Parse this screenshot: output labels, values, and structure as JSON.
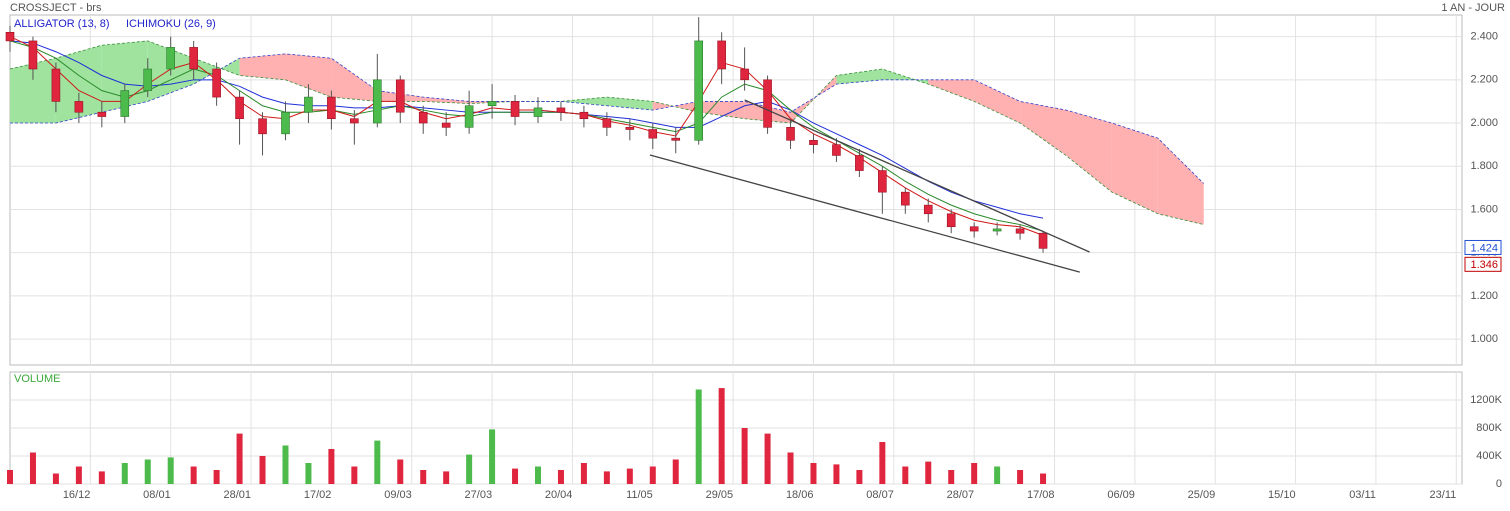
{
  "chart_data": {
    "type": "candlestick",
    "title": "CROSSJECT - brs",
    "period": "1 AN - JOUR",
    "x": [
      0,
      4,
      8,
      12,
      16,
      20,
      24,
      28,
      32,
      36,
      40,
      44,
      48,
      52,
      56,
      60,
      64,
      68,
      72,
      76,
      80,
      84,
      88,
      92,
      96,
      100,
      104,
      108,
      112,
      116,
      120,
      124,
      128,
      132,
      136,
      140,
      144,
      148,
      152,
      156,
      160,
      164,
      168,
      172,
      176,
      180
    ],
    "open": [
      2.42,
      2.38,
      2.25,
      2.1,
      2.05,
      2.03,
      2.15,
      2.25,
      2.35,
      2.25,
      2.12,
      2.02,
      1.95,
      2.05,
      2.12,
      2.02,
      2.0,
      2.2,
      2.05,
      2.0,
      1.98,
      2.08,
      2.1,
      2.03,
      2.07,
      2.05,
      2.02,
      1.98,
      1.97,
      1.93,
      1.92,
      2.38,
      2.25,
      2.2,
      1.98,
      1.92,
      1.9,
      1.85,
      1.78,
      1.68,
      1.62,
      1.58,
      1.52,
      1.5,
      1.51,
      1.49
    ],
    "high": [
      2.45,
      2.4,
      2.28,
      2.14,
      2.1,
      2.18,
      2.3,
      2.4,
      2.38,
      2.28,
      2.15,
      2.05,
      2.1,
      2.18,
      2.15,
      2.06,
      2.32,
      2.22,
      2.08,
      2.05,
      2.15,
      2.18,
      2.13,
      2.12,
      2.1,
      2.08,
      2.05,
      2.02,
      2.0,
      1.98,
      2.49,
      2.42,
      2.35,
      2.22,
      2.01,
      1.95,
      1.93,
      1.88,
      1.8,
      1.7,
      1.65,
      1.6,
      1.54,
      1.54,
      1.53,
      1.5
    ],
    "low": [
      2.33,
      2.2,
      2.05,
      2.0,
      1.98,
      2.0,
      2.12,
      2.22,
      2.2,
      2.08,
      1.9,
      1.85,
      1.92,
      2.0,
      1.97,
      1.9,
      1.98,
      2.0,
      1.95,
      1.94,
      1.95,
      2.02,
      1.99,
      2.0,
      2.01,
      1.98,
      1.94,
      1.92,
      1.88,
      1.86,
      1.9,
      2.18,
      2.15,
      1.95,
      1.88,
      1.86,
      1.82,
      1.75,
      1.58,
      1.58,
      1.54,
      1.49,
      1.47,
      1.48,
      1.46,
      1.4
    ],
    "close": [
      2.38,
      2.25,
      2.1,
      2.05,
      2.03,
      2.15,
      2.25,
      2.35,
      2.25,
      2.12,
      2.02,
      1.95,
      2.05,
      2.12,
      2.02,
      2.0,
      2.2,
      2.05,
      2.0,
      1.98,
      2.08,
      2.1,
      2.03,
      2.07,
      2.05,
      2.02,
      1.98,
      1.97,
      1.93,
      1.92,
      2.38,
      2.25,
      2.2,
      1.98,
      1.92,
      1.9,
      1.85,
      1.78,
      1.68,
      1.62,
      1.58,
      1.52,
      1.5,
      1.51,
      1.49,
      1.42
    ],
    "up_color": "#4cbb4c",
    "down_color": "#e0263f",
    "xlim": [
      0,
      253
    ],
    "xticks": [
      {
        "value": 14,
        "label": "16/12"
      },
      {
        "value": 28,
        "label": "08/01"
      },
      {
        "value": 42,
        "label": "28/01"
      },
      {
        "value": 56,
        "label": "17/02"
      },
      {
        "value": 70,
        "label": "09/03"
      },
      {
        "value": 84,
        "label": "27/03"
      },
      {
        "value": 98,
        "label": "20/04"
      },
      {
        "value": 112,
        "label": "11/05"
      },
      {
        "value": 126,
        "label": "29/05"
      },
      {
        "value": 140,
        "label": "18/06"
      },
      {
        "value": 154,
        "label": "08/07"
      },
      {
        "value": 168,
        "label": "28/07"
      },
      {
        "value": 182,
        "label": "17/08"
      },
      {
        "value": 196,
        "label": "06/09"
      },
      {
        "value": 210,
        "label": "25/09"
      },
      {
        "value": 224,
        "label": "15/10"
      },
      {
        "value": 238,
        "label": "03/11"
      },
      {
        "value": 252,
        "label": "23/11"
      }
    ],
    "ylim": [
      0.88,
      2.5
    ],
    "yticks": [
      {
        "value": 1.0,
        "label": "1.000"
      },
      {
        "value": 1.2,
        "label": "1.200"
      },
      {
        "value": 1.4,
        "label": "1.400"
      },
      {
        "value": 1.6,
        "label": "1.600"
      },
      {
        "value": 1.8,
        "label": "1.800"
      },
      {
        "value": 2.0,
        "label": "2.000"
      },
      {
        "value": 2.2,
        "label": "2.200"
      },
      {
        "value": 2.4,
        "label": "2.400"
      }
    ],
    "grid": true,
    "indicators": {
      "alligator": {
        "label": "ALLIGATOR (13, 8)",
        "label_color": "#2222cc",
        "lines": [
          {
            "color": "#1f2fd8",
            "values": [
              2.38,
              2.37,
              2.33,
              2.28,
              2.22,
              2.18,
              2.17,
              2.18,
              2.2,
              2.2,
              2.17,
              2.12,
              2.09,
              2.08,
              2.08,
              2.07,
              2.07,
              2.08,
              2.07,
              2.06,
              2.05,
              2.05,
              2.05,
              2.05,
              2.05,
              2.04,
              2.03,
              2.02,
              2.0,
              1.98,
              1.98,
              2.03,
              2.08,
              2.1,
              2.06,
              2.0,
              1.95,
              1.9,
              1.85,
              1.79,
              1.73,
              1.68,
              1.64,
              1.61,
              1.58,
              1.56
            ]
          },
          {
            "color": "#2a8a2a",
            "values": [
              2.38,
              2.35,
              2.3,
              2.22,
              2.15,
              2.12,
              2.15,
              2.2,
              2.25,
              2.22,
              2.15,
              2.08,
              2.05,
              2.05,
              2.06,
              2.04,
              2.06,
              2.08,
              2.06,
              2.04,
              2.03,
              2.05,
              2.05,
              2.05,
              2.05,
              2.04,
              2.02,
              2.0,
              1.98,
              1.96,
              2.0,
              2.12,
              2.18,
              2.15,
              2.06,
              1.98,
              1.92,
              1.86,
              1.8,
              1.73,
              1.67,
              1.62,
              1.58,
              1.55,
              1.53,
              1.5
            ]
          },
          {
            "color": "#d01818",
            "values": [
              2.4,
              2.35,
              2.25,
              2.15,
              2.1,
              2.1,
              2.18,
              2.25,
              2.28,
              2.2,
              2.1,
              2.03,
              2.02,
              2.06,
              2.06,
              2.03,
              2.1,
              2.1,
              2.05,
              2.02,
              2.04,
              2.07,
              2.06,
              2.06,
              2.05,
              2.04,
              2.01,
              1.99,
              1.96,
              1.94,
              2.1,
              2.28,
              2.25,
              2.15,
              2.02,
              1.95,
              1.9,
              1.84,
              1.77,
              1.7,
              1.64,
              1.59,
              1.55,
              1.53,
              1.52,
              1.48
            ]
          }
        ]
      },
      "ichimoku": {
        "label": "ICHIMOKU (26, 9)",
        "label_color": "#2222cc",
        "x": [
          0,
          8,
          16,
          24,
          32,
          40,
          48,
          56,
          64,
          72,
          80,
          88,
          96,
          104,
          112,
          120,
          128,
          136,
          144,
          152,
          160,
          168,
          176,
          184,
          192,
          200,
          208
        ],
        "span_a": [
          2.25,
          2.3,
          2.36,
          2.38,
          2.3,
          2.22,
          2.2,
          2.12,
          2.1,
          2.1,
          2.09,
          2.1,
          2.1,
          2.12,
          2.1,
          2.05,
          2.02,
          2.0,
          2.22,
          2.25,
          2.18,
          2.1,
          2.0,
          1.85,
          1.68,
          1.58,
          1.53
        ],
        "span_b": [
          2.0,
          2.0,
          2.05,
          2.1,
          2.18,
          2.3,
          2.32,
          2.3,
          2.15,
          2.12,
          2.1,
          2.1,
          2.1,
          2.08,
          2.06,
          2.1,
          2.1,
          2.05,
          2.18,
          2.2,
          2.2,
          2.2,
          2.1,
          2.06,
          2.0,
          1.93,
          1.72
        ],
        "up_color": "#9fe39f",
        "down_color": "#ffb0b0"
      }
    },
    "trendlines": [
      {
        "color": "#444444",
        "points": [
          [
            128,
            2.107
          ],
          [
            188.1,
            1.403
          ]
        ]
      },
      {
        "color": "#444444",
        "points": [
          [
            111.5,
            1.852
          ],
          [
            186.4,
            1.31
          ]
        ]
      }
    ],
    "last_values": [
      {
        "value": 1.424,
        "color": "#1f4fd1"
      },
      {
        "value": 1.346,
        "color": "#c00000"
      }
    ],
    "volume": {
      "title": "VOLUME",
      "title_color": "#3aa83a",
      "values": [
        200000,
        450000,
        150000,
        250000,
        180000,
        300000,
        350000,
        380000,
        250000,
        200000,
        720000,
        400000,
        550000,
        300000,
        500000,
        250000,
        620000,
        350000,
        200000,
        180000,
        420000,
        780000,
        220000,
        250000,
        200000,
        300000,
        180000,
        220000,
        250000,
        350000,
        1350000,
        1370000,
        800000,
        720000,
        450000,
        300000,
        280000,
        200000,
        600000,
        250000,
        320000,
        200000,
        300000,
        250000,
        200000,
        150000
      ],
      "ylim": [
        0,
        1600000
      ],
      "yticks": [
        0,
        {
          "value": 400000,
          "label": "400K"
        },
        {
          "value": 800000,
          "label": "800K"
        },
        {
          "value": 1200000,
          "label": "1200K"
        }
      ]
    }
  }
}
